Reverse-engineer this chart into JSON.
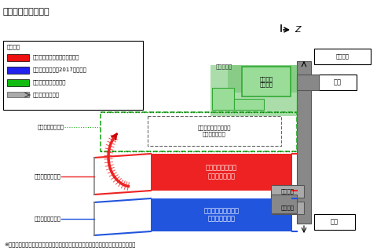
{
  "title": "》布袋駅の概要図》",
  "title2": "【布袋駅の概要図】",
  "bg_color": "#ffffff",
  "footer": "※切り替えにより、西口・東口にある旧改札口を、１箇所（新改札口）に統合します。",
  "legend_title": "【凡例】",
  "legend1_text": "高架本線（下り）今回切替予定",
  "legend2_text": "高架本線（上り）2017年切替済",
  "legend3_text": "地上仮線（下り）廣止",
  "legend4_text": "歩行者通路、動線",
  "platform_down": "下り（犬山方面）\nホーム【高架】",
  "platform_up": "上り（名古屋方面）\nホーム【高架】",
  "temp_platform": "仮線下り（犬山方面）\nホーム【地上】",
  "line_down": "高架本線（下り）",
  "line_up": "高架本線（上り）",
  "temp_line": "地上仮線（下り）",
  "crossing": "（跨線橋）",
  "old_gate_temp": "旧改札口\n（仮駅）",
  "new_gate": "新改札口",
  "old_gate": "旧改札口",
  "west_exit": "西口",
  "east_exit": "東口",
  "station_plaza": "駅前広場",
  "compass": "Z"
}
